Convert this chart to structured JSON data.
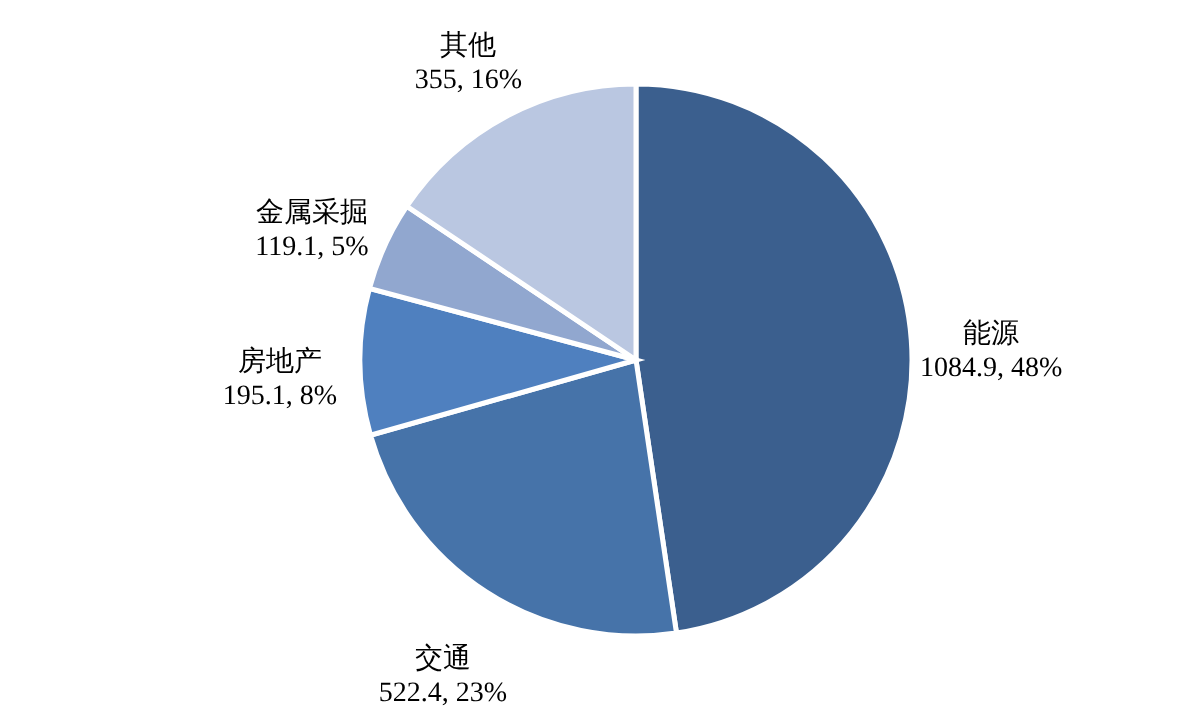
{
  "chart_data": {
    "type": "pie",
    "categories": [
      "能源",
      "交通",
      "房地产",
      "金属采掘",
      "其他"
    ],
    "values": [
      1084.9,
      522.4,
      195.1,
      119.1,
      355
    ],
    "value_labels": [
      "1084.9, 48%",
      "522.4, 23%",
      "195.1, 8%",
      "119.1, 5%",
      "355, 16%"
    ],
    "colors": [
      "#3b5f8e",
      "#4673a9",
      "#4f80bf",
      "#91a7cf",
      "#bac7e1"
    ]
  }
}
